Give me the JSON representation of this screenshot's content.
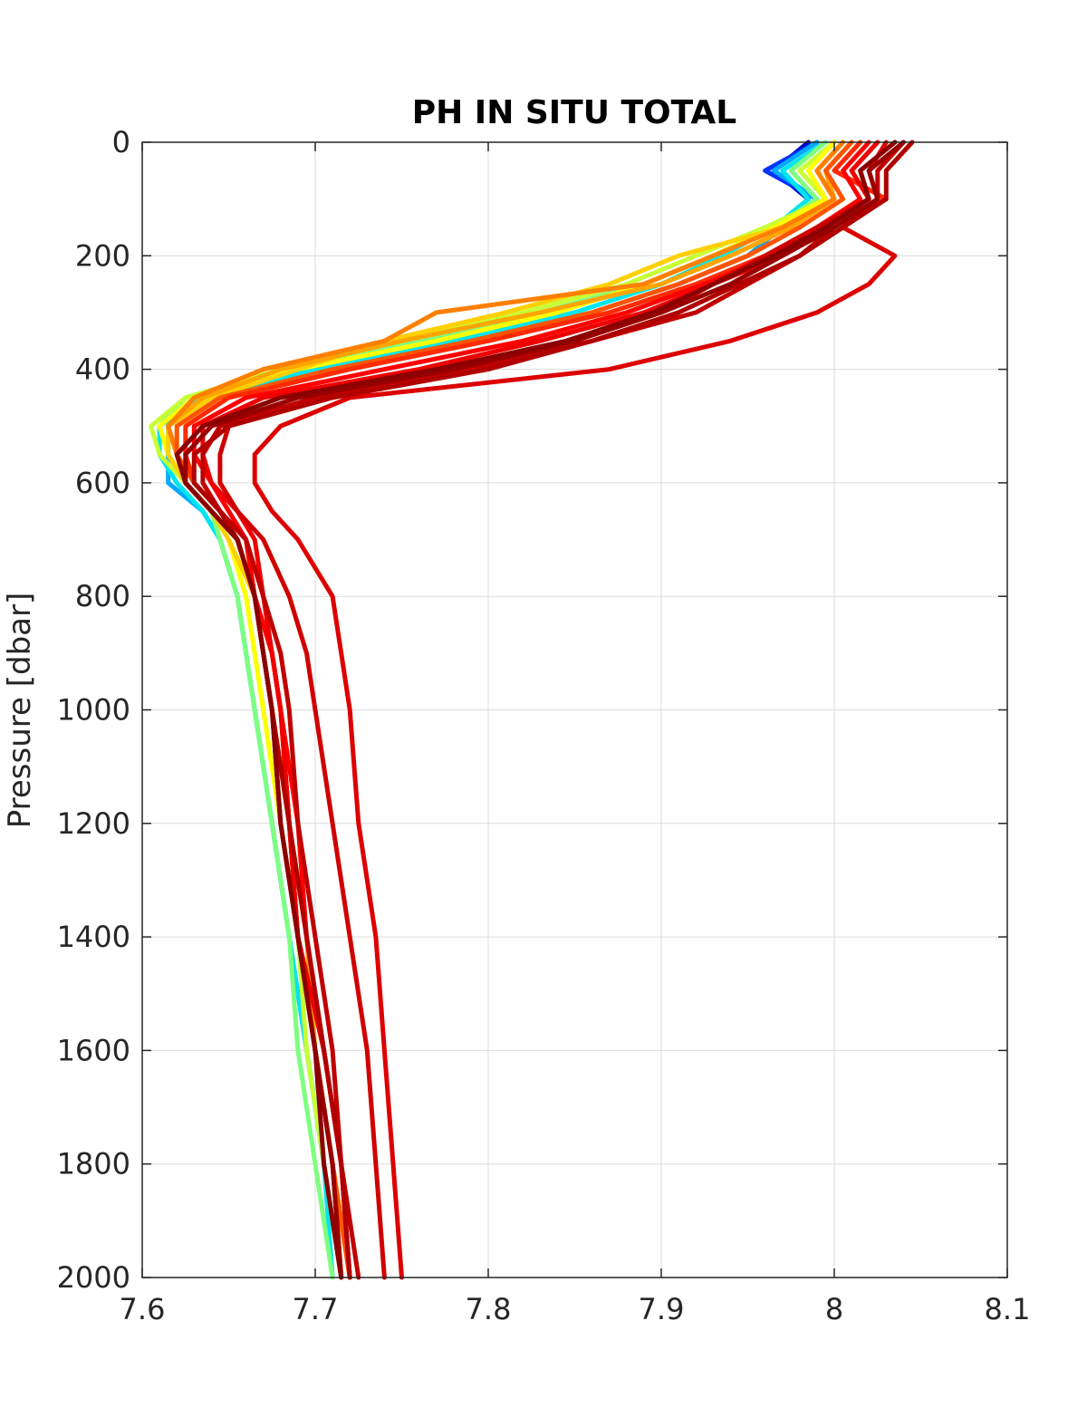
{
  "chart_data": {
    "type": "line",
    "title": "PH IN SITU TOTAL",
    "xlabel": "",
    "ylabel": "Pressure [dbar]",
    "xlim": [
      7.6,
      8.1
    ],
    "ylim": [
      0,
      2000
    ],
    "y_reversed": true,
    "grid": true,
    "legend": "none",
    "xticks": [
      "7.6",
      "7.7",
      "7.8",
      "7.9",
      "8",
      "8.1"
    ],
    "yticks": [
      "0",
      "200",
      "400",
      "600",
      "800",
      "1000",
      "1200",
      "1400",
      "1600",
      "1800",
      "2000"
    ],
    "colormap": "jet (early profiles blue/cyan, later profiles red/dark red)",
    "pressure": [
      0,
      50,
      100,
      150,
      200,
      250,
      300,
      350,
      400,
      450,
      500,
      550,
      600,
      650,
      700,
      800,
      900,
      1000,
      1200,
      1400,
      1600,
      1800,
      2000
    ],
    "series": [
      {
        "color": "#0000cc",
        "values": [
          7.985,
          7.965,
          7.985,
          null,
          null,
          null,
          null,
          null,
          null,
          null,
          null,
          null,
          null,
          null,
          null,
          null,
          null,
          null,
          null,
          null,
          null,
          null,
          null
        ]
      },
      {
        "color": "#0033ff",
        "values": [
          7.99,
          7.96,
          7.99,
          null,
          null,
          null,
          null,
          null,
          null,
          null,
          null,
          null,
          null,
          null,
          null,
          null,
          null,
          null,
          null,
          null,
          null,
          null,
          null
        ]
      },
      {
        "color": "#00aaff",
        "values": [
          7.99,
          7.965,
          7.99,
          7.97,
          7.95,
          7.91,
          7.86,
          7.79,
          7.71,
          7.64,
          7.615,
          7.615,
          7.615,
          7.635,
          7.645,
          7.655,
          7.66,
          7.665,
          7.675,
          7.685,
          7.695,
          7.705,
          7.715
        ]
      },
      {
        "color": "#00e5ee",
        "values": [
          7.995,
          7.97,
          7.985,
          7.965,
          7.935,
          7.9,
          7.85,
          7.78,
          7.7,
          7.635,
          7.61,
          7.61,
          7.62,
          7.635,
          7.645,
          7.655,
          7.66,
          7.665,
          7.675,
          7.685,
          7.695,
          7.705,
          7.71
        ]
      },
      {
        "color": "#7fff80",
        "values": [
          7.995,
          7.975,
          7.99,
          7.965,
          7.93,
          7.89,
          7.83,
          7.76,
          7.68,
          7.625,
          7.61,
          7.615,
          7.625,
          7.64,
          7.645,
          7.655,
          7.66,
          7.665,
          7.675,
          7.685,
          7.69,
          7.7,
          7.71
        ]
      },
      {
        "color": "#c8ff36",
        "values": [
          8.0,
          7.98,
          7.995,
          7.96,
          7.92,
          7.88,
          7.82,
          7.74,
          7.68,
          7.625,
          7.605,
          7.61,
          7.625,
          7.64,
          7.65,
          7.66,
          7.665,
          7.67,
          7.68,
          7.69,
          7.695,
          7.705,
          7.715
        ]
      },
      {
        "color": "#ffff00",
        "values": [
          8.0,
          7.985,
          7.995,
          7.965,
          7.93,
          7.89,
          7.84,
          7.77,
          7.69,
          7.63,
          7.61,
          7.615,
          7.625,
          7.64,
          7.65,
          7.66,
          7.665,
          7.67,
          7.68,
          7.69,
          7.7,
          7.71,
          7.715
        ]
      },
      {
        "color": "#ffd000",
        "values": [
          8.005,
          7.99,
          8.0,
          7.97,
          7.91,
          7.87,
          7.81,
          7.74,
          7.69,
          7.64,
          7.615,
          7.615,
          7.625,
          7.64,
          7.65,
          7.665,
          7.67,
          7.675,
          7.68,
          7.69,
          7.7,
          7.71,
          7.72
        ]
      },
      {
        "color": "#ffa500",
        "values": [
          8.01,
          7.995,
          8.0,
          7.975,
          7.94,
          7.9,
          7.83,
          7.75,
          7.68,
          7.635,
          7.615,
          7.62,
          7.625,
          7.64,
          7.655,
          7.665,
          7.67,
          7.675,
          7.685,
          7.695,
          7.7,
          7.71,
          7.72
        ]
      },
      {
        "color": "#ff7f00",
        "values": [
          8.005,
          7.99,
          8.0,
          7.97,
          7.93,
          7.89,
          7.77,
          7.74,
          7.67,
          7.63,
          7.615,
          7.62,
          7.625,
          7.64,
          7.655,
          7.665,
          7.675,
          7.68,
          7.685,
          7.69,
          7.7,
          7.71,
          7.715
        ]
      },
      {
        "color": "#ff5500",
        "values": [
          8.01,
          7.995,
          8.005,
          7.98,
          7.95,
          7.91,
          7.86,
          7.79,
          7.71,
          7.645,
          7.62,
          7.62,
          7.63,
          7.645,
          7.655,
          7.665,
          7.675,
          7.68,
          7.685,
          7.69,
          7.7,
          7.71,
          7.72
        ]
      },
      {
        "color": "#ff2a00",
        "values": [
          8.015,
          8.0,
          8.03,
          7.99,
          7.96,
          7.92,
          7.87,
          7.8,
          7.72,
          7.65,
          7.625,
          7.625,
          7.63,
          7.645,
          7.66,
          7.665,
          7.675,
          7.68,
          7.685,
          7.69,
          7.7,
          7.71,
          7.715
        ]
      },
      {
        "color": "#ff0000",
        "values": [
          8.02,
          8.005,
          8.015,
          7.99,
          7.965,
          7.925,
          7.88,
          7.82,
          7.74,
          7.66,
          7.63,
          7.63,
          7.64,
          7.65,
          7.66,
          7.665,
          7.675,
          7.68,
          7.69,
          7.695,
          7.705,
          7.715,
          7.72
        ]
      },
      {
        "color": "#ee0000",
        "values": [
          8.025,
          8.01,
          8.02,
          7.995,
          7.97,
          7.93,
          7.89,
          7.83,
          7.76,
          7.67,
          7.635,
          7.635,
          7.64,
          7.655,
          7.665,
          7.67,
          7.675,
          7.68,
          7.685,
          7.69,
          7.705,
          7.715,
          7.72
        ]
      },
      {
        "color": "#dd0000",
        "values": [
          8.03,
          8.02,
          8.025,
          8.005,
          8.035,
          8.02,
          7.99,
          7.94,
          7.87,
          7.72,
          7.68,
          7.665,
          7.665,
          7.675,
          7.69,
          7.71,
          7.715,
          7.72,
          7.725,
          7.735,
          7.74,
          7.745,
          7.75
        ]
      },
      {
        "color": "#d00000",
        "values": [
          8.035,
          8.015,
          8.02,
          7.99,
          7.96,
          7.93,
          7.9,
          7.85,
          7.78,
          7.7,
          7.65,
          7.645,
          7.645,
          7.655,
          7.67,
          7.685,
          7.695,
          7.7,
          7.71,
          7.72,
          7.73,
          7.735,
          7.74
        ]
      },
      {
        "color": "#c00000",
        "values": [
          8.04,
          8.025,
          8.025,
          8.0,
          7.98,
          7.95,
          7.92,
          7.86,
          7.79,
          7.7,
          7.645,
          7.635,
          7.635,
          7.645,
          7.66,
          7.67,
          7.68,
          7.685,
          7.69,
          7.7,
          7.71,
          7.715,
          7.725
        ]
      },
      {
        "color": "#b00000",
        "values": [
          8.045,
          8.03,
          8.03,
          8.005,
          7.98,
          7.945,
          7.91,
          7.86,
          7.8,
          7.71,
          7.65,
          7.63,
          7.63,
          7.645,
          7.655,
          7.665,
          7.67,
          7.675,
          7.685,
          7.695,
          7.705,
          7.715,
          7.72
        ]
      },
      {
        "color": "#990000",
        "values": [
          8.04,
          8.02,
          8.025,
          8.0,
          7.97,
          7.94,
          7.9,
          7.85,
          7.78,
          7.69,
          7.64,
          7.625,
          7.625,
          7.64,
          7.655,
          7.665,
          7.67,
          7.675,
          7.68,
          7.69,
          7.7,
          7.71,
          7.715
        ]
      },
      {
        "color": "#8b0000",
        "values": [
          8.035,
          8.015,
          8.02,
          7.995,
          7.965,
          7.93,
          7.895,
          7.845,
          7.77,
          7.68,
          7.635,
          7.62,
          7.625,
          7.64,
          7.655,
          7.665,
          7.67,
          7.675,
          7.68,
          7.69,
          7.7,
          7.705,
          7.715
        ]
      }
    ]
  }
}
